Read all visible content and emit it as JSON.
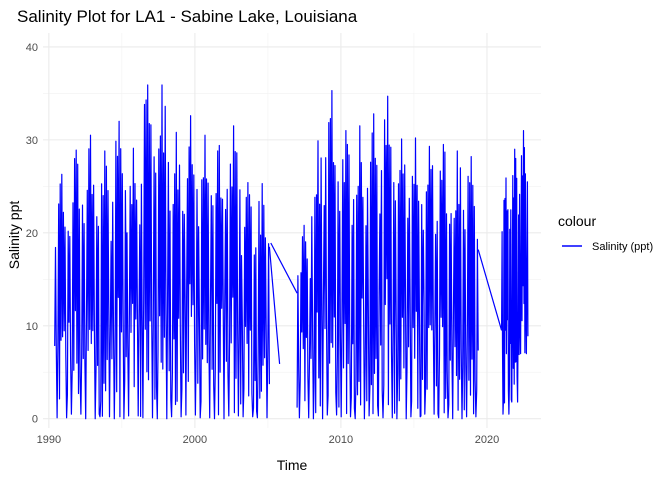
{
  "chart_data": {
    "type": "line",
    "title": "Salinity Plot for LA1 - Sabine Lake, Louisiana",
    "xlabel": "Time",
    "ylabel": "Salinity ppt",
    "xlim": [
      1989.6,
      2023.7
    ],
    "ylim": [
      -1.0,
      41.5
    ],
    "x_ticks": [
      1990,
      2000,
      2010,
      2020
    ],
    "x_tick_labels": [
      "1990",
      "2000",
      "2010",
      "2020"
    ],
    "y_ticks": [
      0,
      10,
      20,
      30,
      40
    ],
    "y_tick_labels": [
      "0",
      "10",
      "20",
      "30",
      "40"
    ],
    "grid": true,
    "legend": {
      "title": "colour",
      "position": "right"
    },
    "series": [
      {
        "name": "Salinity (ppt)",
        "color": "#0000FF",
        "segments": [
          {
            "x_start": 1990.4,
            "x_end": 2005.1,
            "peaks": [
              26.3,
              28.9,
              30.5,
              28.8,
              32.0,
              29.1,
              35.9,
              35.9,
              30.8,
              32.6,
              30.5,
              29.4,
              31.5,
              25.4,
              25.3
            ],
            "troughs": [
              0.1,
              0.5,
              0.0,
              0.2,
              0.0,
              0.3,
              0.1,
              0.0,
              0.2,
              0.4,
              0.1,
              0.0,
              0.3,
              0.2,
              0.1
            ]
          },
          {
            "x_start": 2005.1,
            "x_end": 2005.8,
            "points": [
              [
                2005.1,
                18.5
              ],
              [
                2005.8,
                5.9
              ]
            ]
          },
          {
            "x_start": 2005.2,
            "x_end": 2007.0,
            "points": [
              [
                2005.2,
                18.9
              ],
              [
                2007.0,
                13.5
              ]
            ]
          },
          {
            "x_start": 2007.0,
            "x_end": 2019.4,
            "peaks": [
              20.8,
              29.9,
              35.3,
              31.0,
              31.5,
              32.8,
              34.7,
              30.1,
              30.2,
              29.3,
              29.5,
              28.8,
              28.2
            ],
            "troughs": [
              0.1,
              0.0,
              0.4,
              0.2,
              0.0,
              0.3,
              0.1,
              0.0,
              0.2,
              0.5,
              0.1,
              0.0,
              0.2
            ]
          },
          {
            "x_start": 2019.4,
            "x_end": 2021.0,
            "points": [
              [
                2019.4,
                18.2
              ],
              [
                2021.0,
                9.5
              ]
            ]
          },
          {
            "x_start": 2021.0,
            "x_end": 2022.8,
            "peaks": [
              25.9,
              29.0,
              31.0
            ],
            "troughs": [
              0.5,
              1.8,
              7.0
            ]
          }
        ]
      }
    ]
  }
}
